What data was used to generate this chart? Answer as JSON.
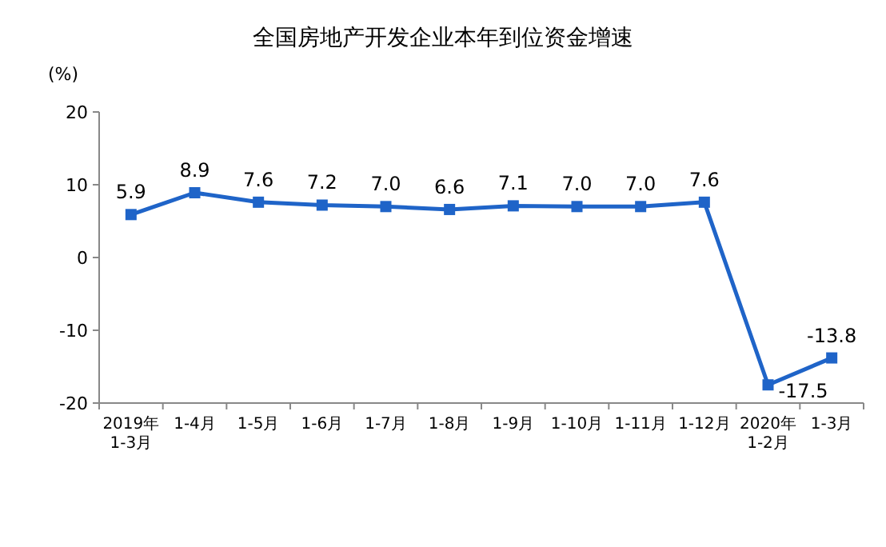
{
  "chart_data": {
    "type": "line",
    "title": "全国房地产开发企业本年到位资金增速",
    "ylabel": "(%)",
    "categories": [
      "2019年\n1-3月",
      "1-4月",
      "1-5月",
      "1-6月",
      "1-7月",
      "1-8月",
      "1-9月",
      "1-10月",
      "1-11月",
      "1-12月",
      "2020年\n1-2月",
      "1-3月"
    ],
    "series": [
      {
        "color": "#1f64c8",
        "values": [
          5.9,
          8.9,
          7.6,
          7.2,
          7.0,
          6.6,
          7.1,
          7.0,
          7.0,
          7.6,
          -17.5,
          -13.8
        ],
        "value_labels": [
          "5.9",
          "8.9",
          "7.6",
          "7.2",
          "7.0",
          "6.6",
          "7.1",
          "7.0",
          "7.0",
          "7.6",
          "-17.5",
          "-13.8"
        ]
      }
    ],
    "ylim": [
      -20,
      20
    ],
    "yticks": [
      -20,
      -10,
      0,
      10,
      20
    ],
    "marker": "square",
    "line_style": "solid"
  }
}
